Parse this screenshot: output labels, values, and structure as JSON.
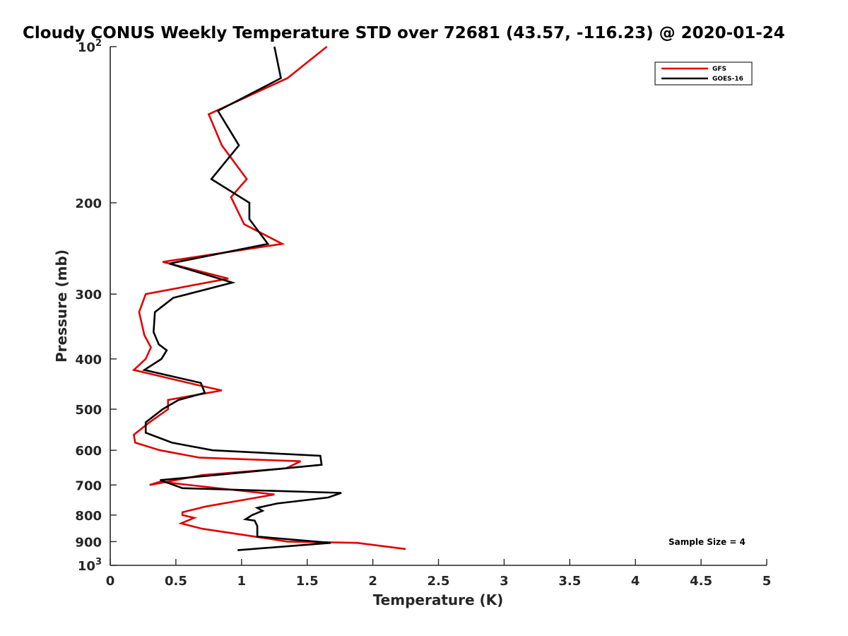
{
  "chart_data": {
    "type": "line",
    "title": "Cloudy CONUS Weekly Temperature STD over 72681 (43.57, -116.23) @ 2020-01-24",
    "xlabel": "Temperature (K)",
    "ylabel": "Pressure (mb)",
    "xlim": [
      0,
      5
    ],
    "ylim": [
      100,
      1000
    ],
    "y_scale": "log",
    "y_reversed": true,
    "x_ticks": [
      "0",
      "0.5",
      "1",
      "1.5",
      "2",
      "2.5",
      "3",
      "3.5",
      "4",
      "4.5",
      "5"
    ],
    "y_ticks": [
      {
        "value": 100,
        "label": "10",
        "exp": "2"
      },
      {
        "value": 200,
        "label": "200"
      },
      {
        "value": 300,
        "label": "300"
      },
      {
        "value": 400,
        "label": "400"
      },
      {
        "value": 500,
        "label": "500"
      },
      {
        "value": 600,
        "label": "600"
      },
      {
        "value": 700,
        "label": "700"
      },
      {
        "value": 800,
        "label": "800"
      },
      {
        "value": 900,
        "label": "900"
      },
      {
        "value": 1000,
        "label": "10",
        "exp": "3"
      }
    ],
    "grid": false,
    "legend_position": "top-right",
    "series": [
      {
        "name": "GFS",
        "color": "#e00000",
        "points": [
          [
            1.65,
            100
          ],
          [
            1.35,
            115
          ],
          [
            0.75,
            135
          ],
          [
            0.85,
            155
          ],
          [
            1.04,
            180
          ],
          [
            0.92,
            195
          ],
          [
            1.02,
            220
          ],
          [
            1.31,
            240
          ],
          [
            0.4,
            260
          ],
          [
            0.9,
            280
          ],
          [
            0.27,
            300
          ],
          [
            0.22,
            325
          ],
          [
            0.26,
            360
          ],
          [
            0.31,
            380
          ],
          [
            0.27,
            400
          ],
          [
            0.18,
            420
          ],
          [
            0.68,
            450
          ],
          [
            0.85,
            460
          ],
          [
            0.44,
            480
          ],
          [
            0.44,
            500
          ],
          [
            0.3,
            530
          ],
          [
            0.18,
            560
          ],
          [
            0.19,
            580
          ],
          [
            0.38,
            600
          ],
          [
            0.68,
            620
          ],
          [
            1.45,
            630
          ],
          [
            1.34,
            650
          ],
          [
            0.7,
            670
          ],
          [
            0.3,
            700
          ],
          [
            0.38,
            690
          ],
          [
            1.25,
            730
          ],
          [
            1.12,
            740
          ],
          [
            0.73,
            770
          ],
          [
            0.55,
            790
          ],
          [
            0.55,
            800
          ],
          [
            0.64,
            810
          ],
          [
            0.54,
            830
          ],
          [
            0.7,
            850
          ],
          [
            1.1,
            880
          ],
          [
            1.35,
            900
          ],
          [
            1.88,
            905
          ],
          [
            2.25,
            930
          ]
        ]
      },
      {
        "name": "GOES-16",
        "color": "#000000",
        "points": [
          [
            1.25,
            100
          ],
          [
            1.3,
            115
          ],
          [
            0.82,
            133
          ],
          [
            0.98,
            155
          ],
          [
            0.77,
            180
          ],
          [
            1.06,
            200
          ],
          [
            1.06,
            215
          ],
          [
            1.2,
            240
          ],
          [
            0.45,
            262
          ],
          [
            0.93,
            285
          ],
          [
            0.48,
            305
          ],
          [
            0.34,
            325
          ],
          [
            0.33,
            355
          ],
          [
            0.37,
            375
          ],
          [
            0.43,
            385
          ],
          [
            0.39,
            400
          ],
          [
            0.26,
            420
          ],
          [
            0.69,
            445
          ],
          [
            0.72,
            465
          ],
          [
            0.52,
            480
          ],
          [
            0.4,
            500
          ],
          [
            0.27,
            530
          ],
          [
            0.27,
            555
          ],
          [
            0.47,
            580
          ],
          [
            0.78,
            600
          ],
          [
            1.6,
            615
          ],
          [
            1.61,
            640
          ],
          [
            0.8,
            670
          ],
          [
            0.38,
            685
          ],
          [
            0.55,
            710
          ],
          [
            1.76,
            725
          ],
          [
            1.66,
            740
          ],
          [
            1.27,
            760
          ],
          [
            1.12,
            775
          ],
          [
            1.16,
            785
          ],
          [
            1.08,
            800
          ],
          [
            1.03,
            815
          ],
          [
            1.1,
            820
          ],
          [
            1.12,
            840
          ],
          [
            1.12,
            880
          ],
          [
            1.68,
            905
          ],
          [
            0.97,
            935
          ]
        ]
      }
    ],
    "annotations": [
      {
        "text": "Sample Size = 4",
        "position": "bottom-right"
      }
    ]
  }
}
